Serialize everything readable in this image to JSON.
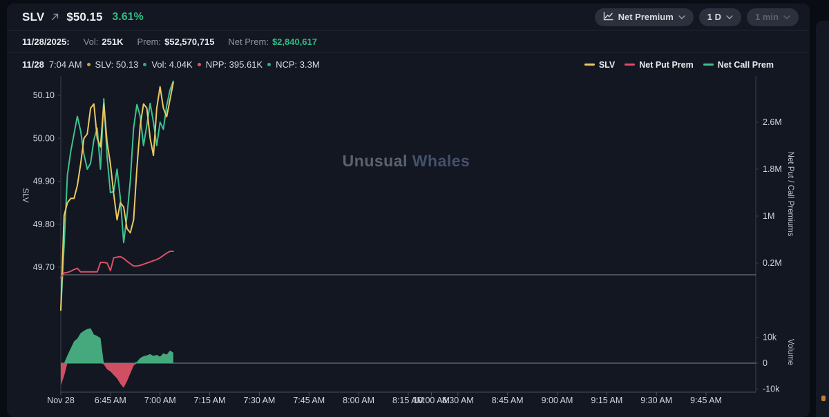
{
  "header": {
    "symbol": "SLV",
    "price": "$50.15",
    "change_pct": "3.61%",
    "change_color": "#2ebd85"
  },
  "toolbar": {
    "metric_label": "Net Premium",
    "range_label": "1 D",
    "interval_label": "1 min"
  },
  "summary": {
    "date": "11/28/2025:",
    "vol_label": "Vol:",
    "vol_value": "251K",
    "prem_label": "Prem:",
    "prem_value": "$52,570,715",
    "net_prem_label": "Net Prem:",
    "net_prem_value": "$2,840,617",
    "net_prem_color": "#2ebd85"
  },
  "crosshair": {
    "date": "11/28",
    "time": "7:04 AM",
    "items": [
      {
        "text": "SLV: 50.13",
        "bullet": "#c7a43e"
      },
      {
        "text": "Vol: 4.04K",
        "bullet": "#39a97e"
      },
      {
        "text": "NPP: 395.61K",
        "bullet": "#d95970"
      },
      {
        "text": "NCP: 3.3M",
        "bullet": "#39b080"
      }
    ]
  },
  "legend": [
    {
      "label": "SLV",
      "color": "#e9c964"
    },
    {
      "label": "Net Put Prem",
      "color": "#e04d68"
    },
    {
      "label": "Net Call Prem",
      "color": "#3ec28f"
    }
  ],
  "watermark": {
    "part1": "Unusual ",
    "part2": "Whales",
    "part1_color": "#5a6370",
    "part2_color": "#42526a"
  },
  "chart_data": {
    "type": "line",
    "title": "SLV Net Premium, 1D, 1 min interval",
    "x_start": "6:30 AM",
    "x_interval_minutes": 1,
    "points": 35,
    "last_point_time": "7:04 AM",
    "grid": "off",
    "legend_position": "top-right",
    "left_axis": {
      "title": "SLV",
      "ticks": [
        50.1,
        50.0,
        49.9,
        49.8,
        49.7
      ],
      "range": [
        49.59,
        50.15
      ]
    },
    "right_axis": {
      "title": "Net Put / Call Premiums",
      "ticks": [
        {
          "label": "2.6M",
          "v": 2.6
        },
        {
          "label": "1.8M",
          "v": 1.8
        },
        {
          "label": "1M",
          "v": 1.0
        },
        {
          "label": "0.2M",
          "v": 0.2
        }
      ],
      "range": [
        -0.67,
        3.4
      ]
    },
    "volume_axis": {
      "title": "Volume",
      "ticks": [
        {
          "label": "10k",
          "v": 10
        },
        {
          "label": "0",
          "v": 0
        },
        {
          "label": "-10k",
          "v": -10
        }
      ],
      "range": [
        -11,
        18
      ]
    },
    "x_axis_labels": [
      {
        "text": "Nov 28",
        "m": 0
      },
      {
        "text": "6:45 AM",
        "m": 15
      },
      {
        "text": "7:00 AM",
        "m": 30
      },
      {
        "text": "7:15 AM",
        "m": 45
      },
      {
        "text": "7:30 AM",
        "m": 60
      },
      {
        "text": "7:45 AM",
        "m": 75
      },
      {
        "text": "8:00 AM",
        "m": 90
      },
      {
        "text": "8:15 AM",
        "m": 105
      },
      {
        "text": "10:00 AM",
        "m": 112
      },
      {
        "text": "8:30 AM",
        "m": 120
      },
      {
        "text": "8:45 AM",
        "m": 135
      },
      {
        "text": "9:00 AM",
        "m": 150
      },
      {
        "text": "9:15 AM",
        "m": 165
      },
      {
        "text": "9:30 AM",
        "m": 180
      },
      {
        "text": "9:45 AM",
        "m": 195
      }
    ],
    "series": [
      {
        "name": "SLV",
        "axis": "price",
        "color": "#e9c964",
        "values": [
          49.6,
          49.82,
          49.85,
          49.86,
          49.86,
          49.89,
          49.94,
          50.0,
          50.01,
          50.07,
          50.08,
          50.0,
          49.98,
          50.08,
          49.99,
          49.94,
          49.87,
          49.81,
          49.85,
          49.84,
          49.79,
          49.78,
          49.81,
          49.93,
          50.03,
          50.08,
          50.07,
          50.0,
          49.96,
          50.07,
          50.12,
          50.07,
          50.05,
          50.09,
          50.13
        ]
      },
      {
        "name": "Net Put Prem",
        "axis": "premium_M",
        "color": "#e04d68",
        "values": [
          -0.05,
          0.03,
          0.04,
          0.06,
          0.09,
          0.11,
          0.05,
          0.05,
          0.05,
          0.05,
          0.05,
          0.05,
          0.21,
          0.21,
          0.2,
          0.07,
          0.29,
          0.3,
          0.31,
          0.28,
          0.23,
          0.19,
          0.15,
          0.15,
          0.16,
          0.18,
          0.2,
          0.22,
          0.24,
          0.26,
          0.29,
          0.33,
          0.37,
          0.4,
          0.4
        ]
      },
      {
        "name": "Net Call Prem",
        "axis": "premium_M",
        "color": "#3ec28f",
        "values": [
          -0.6,
          0.5,
          1.7,
          2.1,
          2.4,
          2.7,
          2.45,
          2.05,
          1.8,
          1.9,
          2.3,
          2.5,
          1.8,
          3.0,
          2.0,
          1.4,
          1.42,
          1.8,
          1.3,
          0.55,
          1.0,
          1.6,
          2.5,
          2.9,
          2.7,
          2.2,
          2.55,
          2.92,
          2.6,
          2.2,
          2.6,
          2.48,
          2.88,
          3.15,
          3.3
        ]
      },
      {
        "name": "Volume",
        "type": "area",
        "axis": "volume_k",
        "pos_color": "#45a97d",
        "neg_color": "#d14f63",
        "values": [
          -8.6,
          -5.0,
          3.0,
          5.7,
          8.4,
          9.5,
          11.6,
          12.5,
          13.2,
          13.5,
          11.1,
          10.5,
          9.7,
          -0.5,
          -2.4,
          -3.2,
          -4.6,
          -5.9,
          -8.0,
          -9.5,
          -7.0,
          -4.0,
          -1.0,
          0.5,
          2.0,
          2.7,
          3.0,
          3.5,
          2.8,
          3.2,
          2.5,
          3.8,
          3.3,
          4.9,
          4.04
        ]
      }
    ]
  }
}
